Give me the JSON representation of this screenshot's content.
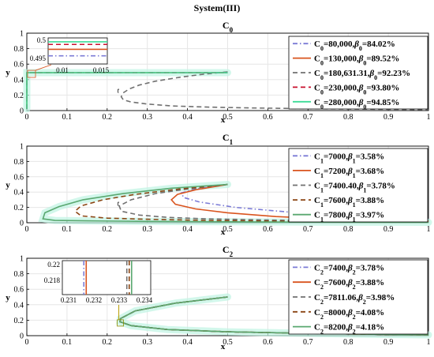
{
  "figure_title": "System(III)",
  "chart_data": [
    {
      "type": "line",
      "title": "C₀",
      "xlabel": "x",
      "ylabel": "y",
      "xlim": [
        0,
        1
      ],
      "ylim": [
        0,
        1
      ],
      "xticks": [
        "0",
        "0.1",
        "0.2",
        "0.3",
        "0.4",
        "0.5",
        "0.6",
        "0.7",
        "0.8",
        "0.9",
        "1"
      ],
      "yticks": [
        "0",
        "0.2",
        "0.4",
        "0.6",
        "0.8",
        "1"
      ],
      "grid": true,
      "legend_position": "top-right",
      "annotation": "t",
      "series": [
        {
          "name": "C₀=80,000,β₀=84.02%",
          "color": "#7b7bd6",
          "dash": "dashdot",
          "points": [
            [
              0,
              0.02
            ],
            [
              0,
              0.49
            ],
            [
              0.5,
              0.49
            ]
          ]
        },
        {
          "name": "C₀=130,000,β₀=89.52%",
          "color": "#d9541e",
          "dash": "solid",
          "points": [
            [
              0,
              0.02
            ],
            [
              0,
              0.49
            ],
            [
              0.5,
              0.49
            ]
          ]
        },
        {
          "name": "C₀=180,631.31,β₀=92.23%",
          "color": "#707070",
          "dash": "dashed",
          "points": [
            [
              0.5,
              0.5
            ],
            [
              0.44,
              0.47
            ],
            [
              0.38,
              0.43
            ],
            [
              0.32,
              0.38
            ],
            [
              0.28,
              0.33
            ],
            [
              0.255,
              0.28
            ],
            [
              0.24,
              0.23
            ],
            [
              0.235,
              0.18
            ],
            [
              0.24,
              0.14
            ],
            [
              0.26,
              0.11
            ],
            [
              0.3,
              0.085
            ],
            [
              0.36,
              0.06
            ],
            [
              0.45,
              0.045
            ],
            [
              0.55,
              0.035
            ],
            [
              0.7,
              0.025
            ],
            [
              0.85,
              0.018
            ],
            [
              1,
              0.012
            ]
          ]
        },
        {
          "name": "C₀=230,000,β₀=93.80%",
          "color": "#c8102e",
          "dash": "dashed",
          "points": [
            [
              0,
              0.02
            ],
            [
              0,
              0.49
            ],
            [
              0.5,
              0.49
            ]
          ]
        },
        {
          "name": "C₀=280,000,β₀=94.85%",
          "color": "#3ddc97",
          "dash": "solid",
          "points": [
            [
              0,
              0.02
            ],
            [
              0,
              0.49
            ],
            [
              0.5,
              0.49
            ]
          ]
        }
      ],
      "inset": {
        "xlim": [
          0.008,
          0.017
        ],
        "ylim": [
          0.494,
          0.502
        ],
        "xticks": [
          "0.01",
          "0.015"
        ],
        "yticks": [
          "0.495",
          "0.5"
        ],
        "lines": [
          {
            "color": "#7b7bd6",
            "dash": "dashdot",
            "y": 0.4965
          },
          {
            "color": "#d9541e",
            "dash": "solid",
            "y": 0.4985
          },
          {
            "color": "#c8102e",
            "dash": "dashed",
            "y": 0.5
          },
          {
            "color": "#3ddc97",
            "dash": "solid",
            "y": 0.5008
          }
        ]
      }
    },
    {
      "type": "line",
      "title": "C₁",
      "xlabel": "x",
      "ylabel": "y",
      "xlim": [
        0,
        1
      ],
      "ylim": [
        0,
        1
      ],
      "xticks": [
        "0",
        "0.1",
        "0.2",
        "0.3",
        "0.4",
        "0.5",
        "0.6",
        "0.7",
        "0.8",
        "0.9",
        "1"
      ],
      "yticks": [
        "0",
        "0.2",
        "0.4",
        "0.6",
        "0.8",
        "1"
      ],
      "grid": true,
      "legend_position": "top-right",
      "annotation": "t",
      "series": [
        {
          "name": "C₁=7000,β₁=3.58%",
          "color": "#7b7bd6",
          "dash": "dashdot",
          "points": [
            [
              0.5,
              0.5
            ],
            [
              0.42,
              0.44
            ],
            [
              0.385,
              0.39
            ],
            [
              0.39,
              0.33
            ],
            [
              0.43,
              0.27
            ],
            [
              0.52,
              0.2
            ],
            [
              0.65,
              0.14
            ],
            [
              0.8,
              0.1
            ],
            [
              0.9,
              0.07
            ],
            [
              1,
              0.05
            ]
          ]
        },
        {
          "name": "C₁=7200,β₁=3.68%",
          "color": "#d9541e",
          "dash": "solid",
          "points": [
            [
              0.5,
              0.5
            ],
            [
              0.42,
              0.43
            ],
            [
              0.375,
              0.37
            ],
            [
              0.36,
              0.3
            ],
            [
              0.37,
              0.24
            ],
            [
              0.42,
              0.18
            ],
            [
              0.5,
              0.13
            ],
            [
              0.62,
              0.08
            ],
            [
              0.75,
              0.05
            ],
            [
              0.9,
              0.03
            ],
            [
              1,
              0.02
            ]
          ]
        },
        {
          "name": "C₁=7400.40,β₁=3.78%",
          "color": "#707070",
          "dash": "dashed",
          "points": [
            [
              0.5,
              0.5
            ],
            [
              0.4,
              0.44
            ],
            [
              0.32,
              0.38
            ],
            [
              0.26,
              0.3
            ],
            [
              0.23,
              0.22
            ],
            [
              0.235,
              0.15
            ],
            [
              0.28,
              0.1
            ],
            [
              0.35,
              0.07
            ],
            [
              0.45,
              0.05
            ],
            [
              0.6,
              0.035
            ],
            [
              0.8,
              0.02
            ],
            [
              1,
              0.012
            ]
          ]
        },
        {
          "name": "C₁=7600,β₁=3.88%",
          "color": "#8b4513",
          "dash": "dashed",
          "points": [
            [
              0.5,
              0.5
            ],
            [
              0.38,
              0.44
            ],
            [
              0.27,
              0.37
            ],
            [
              0.19,
              0.3
            ],
            [
              0.135,
              0.22
            ],
            [
              0.12,
              0.15
            ],
            [
              0.135,
              0.09
            ],
            [
              0.2,
              0.06
            ],
            [
              0.3,
              0.045
            ],
            [
              0.45,
              0.03
            ],
            [
              0.65,
              0.02
            ],
            [
              0.85,
              0.012
            ],
            [
              1,
              0.008
            ]
          ]
        },
        {
          "name": "C₁=7800,β₁=3.97%",
          "color": "#5aa870",
          "dash": "solid",
          "points": [
            [
              0.5,
              0.5
            ],
            [
              0.36,
              0.45
            ],
            [
              0.24,
              0.38
            ],
            [
              0.14,
              0.3
            ],
            [
              0.08,
              0.21
            ],
            [
              0.045,
              0.13
            ],
            [
              0.04,
              0.05
            ],
            [
              0.07,
              0.03
            ],
            [
              0.15,
              0.025
            ],
            [
              0.3,
              0.018
            ],
            [
              0.5,
              0.012
            ],
            [
              0.7,
              0.008
            ],
            [
              1,
              0.005
            ]
          ]
        }
      ]
    },
    {
      "type": "line",
      "title": "C₂",
      "xlabel": "x",
      "ylabel": "y",
      "xlim": [
        0,
        1
      ],
      "ylim": [
        0,
        1
      ],
      "xticks": [
        "0",
        "0.1",
        "0.2",
        "0.3",
        "0.4",
        "0.5",
        "0.6",
        "0.7",
        "0.8",
        "0.9",
        "1"
      ],
      "yticks": [
        "0",
        "0.2",
        "0.4",
        "0.6",
        "0.8",
        "1"
      ],
      "grid": true,
      "legend_position": "top-right",
      "series": [
        {
          "name": "C₂=7400,β₂=3.78%",
          "color": "#7b7bd6",
          "dash": "dashdot",
          "points": [
            [
              0.5,
              0.5
            ],
            [
              0.37,
              0.42
            ],
            [
              0.27,
              0.32
            ],
            [
              0.233,
              0.22
            ],
            [
              0.232,
              0.18
            ],
            [
              0.26,
              0.13
            ],
            [
              0.35,
              0.08
            ],
            [
              0.5,
              0.05
            ],
            [
              0.7,
              0.03
            ],
            [
              0.9,
              0.015
            ],
            [
              1,
              0.01
            ]
          ]
        },
        {
          "name": "C₂=7600,β₂=3.88%",
          "color": "#d9541e",
          "dash": "solid",
          "points": [
            [
              0.5,
              0.5
            ],
            [
              0.37,
              0.42
            ],
            [
              0.27,
              0.32
            ],
            [
              0.233,
              0.22
            ],
            [
              0.232,
              0.18
            ],
            [
              0.26,
              0.13
            ],
            [
              0.35,
              0.08
            ],
            [
              0.5,
              0.05
            ],
            [
              0.7,
              0.03
            ],
            [
              0.9,
              0.015
            ],
            [
              1,
              0.01
            ]
          ]
        },
        {
          "name": "C₂=7811.06,β₂=3.98%",
          "color": "#707070",
          "dash": "dashed",
          "points": [
            [
              0.5,
              0.5
            ],
            [
              0.37,
              0.42
            ],
            [
              0.27,
              0.32
            ],
            [
              0.233,
              0.22
            ],
            [
              0.232,
              0.18
            ],
            [
              0.26,
              0.13
            ],
            [
              0.35,
              0.08
            ],
            [
              0.5,
              0.05
            ],
            [
              0.7,
              0.03
            ],
            [
              0.9,
              0.015
            ],
            [
              1,
              0.01
            ]
          ]
        },
        {
          "name": "C₂=8000,β₂=4.08%",
          "color": "#8b4513",
          "dash": "dashed",
          "points": [
            [
              0.5,
              0.5
            ],
            [
              0.37,
              0.42
            ],
            [
              0.27,
              0.32
            ],
            [
              0.233,
              0.22
            ],
            [
              0.232,
              0.18
            ],
            [
              0.26,
              0.13
            ],
            [
              0.35,
              0.08
            ],
            [
              0.5,
              0.05
            ],
            [
              0.7,
              0.03
            ],
            [
              0.9,
              0.015
            ],
            [
              1,
              0.01
            ]
          ]
        },
        {
          "name": "C₂=8200,β₂=4.18%",
          "color": "#5aa870",
          "dash": "solid",
          "points": [
            [
              0.5,
              0.5
            ],
            [
              0.37,
              0.42
            ],
            [
              0.27,
              0.32
            ],
            [
              0.233,
              0.22
            ],
            [
              0.232,
              0.18
            ],
            [
              0.26,
              0.13
            ],
            [
              0.35,
              0.08
            ],
            [
              0.5,
              0.05
            ],
            [
              0.7,
              0.03
            ],
            [
              0.9,
              0.015
            ],
            [
              1,
              0.01
            ]
          ]
        }
      ],
      "inset": {
        "xlim": [
          0.2305,
          0.2342
        ],
        "ylim": [
          0.215,
          0.223
        ],
        "xticks": [
          "0.231",
          "0.232",
          "0.233",
          "0.234"
        ],
        "yticks": [
          "0.218",
          "0.22"
        ],
        "lines": [
          {
            "color": "#7b7bd6",
            "dash": "dashdot",
            "x": 0.2314
          },
          {
            "color": "#d9541e",
            "dash": "solid",
            "x": 0.2315
          },
          {
            "color": "#707070",
            "dash": "dashed",
            "x": 0.2332
          },
          {
            "color": "#8b4513",
            "dash": "dashed",
            "x": 0.2333
          },
          {
            "color": "#5aa870",
            "dash": "solid",
            "x": 0.2334
          }
        ]
      }
    }
  ]
}
